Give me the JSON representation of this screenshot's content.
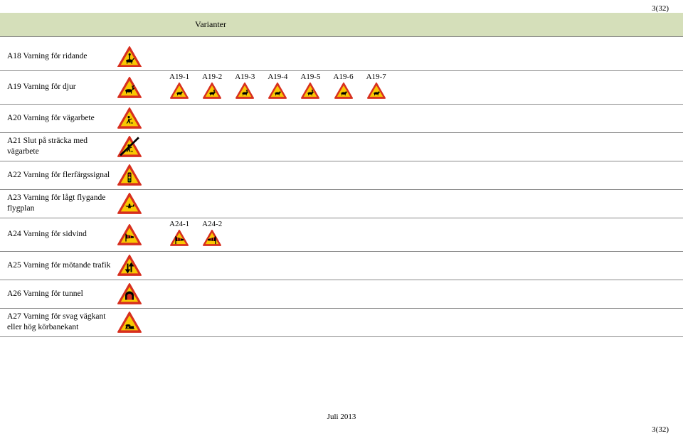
{
  "page_number_top": "3(32)",
  "header_title": "Varianter",
  "rows": [
    {
      "label": "A18 Varning för ridande",
      "icon": "rider",
      "variants": []
    },
    {
      "label": "A19 Varning för djur",
      "icon": "moose",
      "variants": [
        {
          "code": "A19-1",
          "icon": "fox"
        },
        {
          "code": "A19-2",
          "icon": "deer"
        },
        {
          "code": "A19-3",
          "icon": "reindeer"
        },
        {
          "code": "A19-4",
          "icon": "cow"
        },
        {
          "code": "A19-5",
          "icon": "deer2"
        },
        {
          "code": "A19-6",
          "icon": "horse"
        },
        {
          "code": "A19-7",
          "icon": "boar"
        }
      ]
    },
    {
      "label": "A20 Varning för vägarbete",
      "icon": "roadwork",
      "variants": []
    },
    {
      "label": "A21 Slut på sträcka med vägarbete",
      "icon": "roadwork-end",
      "variants": []
    },
    {
      "label": "A22 Varning för flerfärgssignal",
      "icon": "signal",
      "variants": []
    },
    {
      "label": "A23 Varning för lågt flygande flygplan",
      "icon": "plane",
      "variants": []
    },
    {
      "label": "A24 Varning för sidvind",
      "icon": "windsock",
      "variants": [
        {
          "code": "A24-1",
          "icon": "windsock-l"
        },
        {
          "code": "A24-2",
          "icon": "windsock-r"
        }
      ]
    },
    {
      "label": "A25 Varning för mötande trafik",
      "icon": "twoway",
      "variants": []
    },
    {
      "label": "A26 Varning för tunnel",
      "icon": "tunnel",
      "variants": []
    },
    {
      "label": "A27 Varning för svag vägkant eller hög körbanekant",
      "icon": "edge",
      "variants": []
    }
  ],
  "footer_center": "Juli 2013",
  "footer_right": "3(32)",
  "colors": {
    "sign_red": "#d72f1f",
    "sign_yellow": "#f9c802",
    "sign_black": "#000000",
    "band": "#d5dfba"
  },
  "sign_size_main": 34,
  "sign_size_variant": 26
}
